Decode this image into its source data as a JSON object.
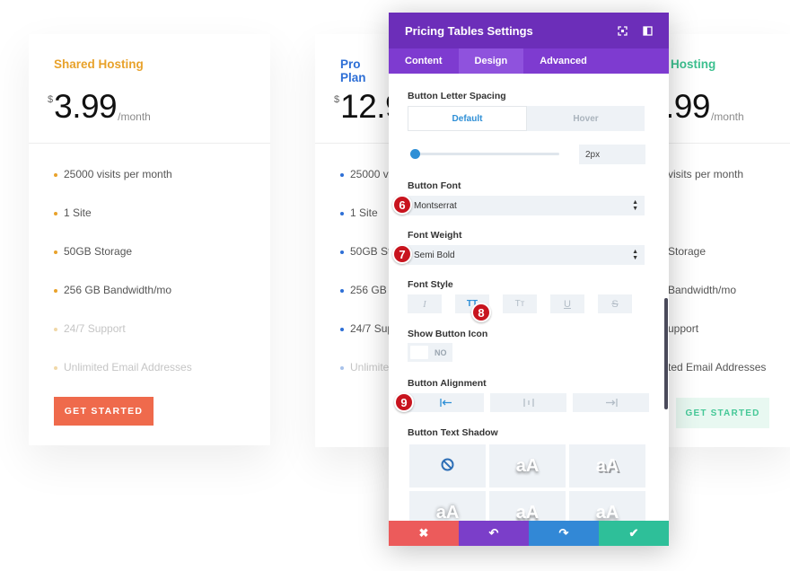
{
  "pricing": {
    "left": {
      "name": "Shared Hosting",
      "currency": "$",
      "price": "3.99",
      "per": "/month",
      "features": [
        "25000 visits per month",
        "1 Site",
        "50GB Storage",
        "256 GB Bandwidth/mo",
        "24/7 Support",
        "Unlimited Email Addresses"
      ],
      "button": "GET STARTED",
      "accent": "#e8a22b",
      "bullet_color": "#e8a22b",
      "button_color": "#ef6a4c"
    },
    "middle": {
      "name": "Pro Plan",
      "currency": "$",
      "price": "12.9",
      "features": [
        "25000 vi",
        "1 Site",
        "50GB Sto",
        "256 GB B",
        "24/7 Sup",
        "Unlimite"
      ],
      "accent": "#2e6fd6"
    },
    "right": {
      "name": "Hosting",
      "price": ".99",
      "per": "/month",
      "features": [
        "visits per month",
        "",
        "Storage",
        "Bandwidth/mo",
        "upport",
        "ted Email Addresses"
      ],
      "button": "GET STARTED",
      "accent": "#3cc08f"
    }
  },
  "modal": {
    "title": "Pricing Tables Settings",
    "header_icons": [
      "expand-icon",
      "split-view-icon"
    ],
    "tabs": [
      {
        "label": "Content",
        "active": false
      },
      {
        "label": "Design",
        "active": true
      },
      {
        "label": "Advanced",
        "active": false
      }
    ],
    "letter_spacing": {
      "label": "Button Letter Spacing",
      "state_default": "Default",
      "state_hover": "Hover",
      "value": "2px"
    },
    "button_font": {
      "label": "Button Font",
      "value": "Montserrat"
    },
    "font_weight": {
      "label": "Font Weight",
      "value": "Semi Bold"
    },
    "font_style": {
      "label": "Font Style",
      "options": [
        "I",
        "TT",
        "Tт",
        "U",
        "S"
      ],
      "active": "TT"
    },
    "show_icon": {
      "label": "Show Button Icon",
      "value": "NO"
    },
    "alignment": {
      "label": "Button Alignment",
      "options": [
        "align-left-icon",
        "align-center-icon",
        "align-right-icon"
      ],
      "active": "align-left-icon"
    },
    "text_shadow": {
      "label": "Button Text Shadow",
      "preview_text": "aA",
      "options": [
        "none-icon",
        "aA",
        "aA",
        "aA",
        "aA",
        "aA"
      ]
    },
    "footer": [
      {
        "name": "cancel",
        "icon": "close-icon",
        "glyph": "✖",
        "color": "#ec5b5b"
      },
      {
        "name": "undo",
        "icon": "undo-icon",
        "glyph": "↶",
        "color": "#7b3ec9"
      },
      {
        "name": "redo",
        "icon": "redo-icon",
        "glyph": "↷",
        "color": "#3288d6"
      },
      {
        "name": "save",
        "icon": "check-icon",
        "glyph": "✔",
        "color": "#2ebf99"
      }
    ]
  },
  "markers": [
    "6",
    "7",
    "8",
    "9"
  ],
  "colors": {
    "header": "#6c2eb9",
    "tabs": "#7e3bd0",
    "active_tab": "#8f52dd",
    "accent_blue": "#2e8fd6"
  }
}
